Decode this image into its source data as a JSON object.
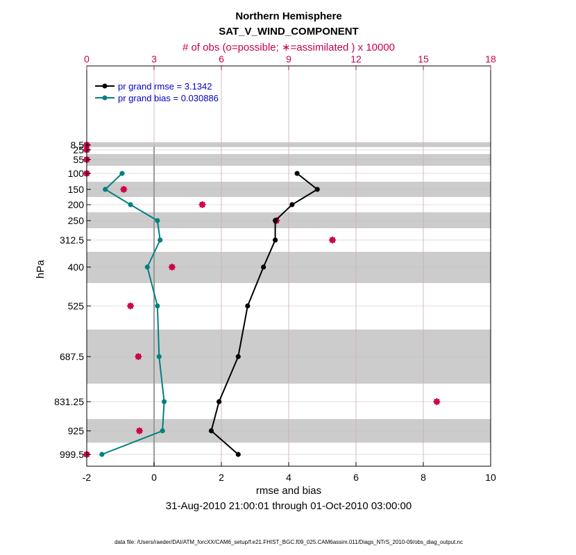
{
  "chart_data": {
    "type": "line",
    "title": "Northern Hemisphere",
    "subtitle": "SAT_V_WIND_COMPONENT",
    "top_axis_label": "# of obs (o=possible; ∗=assimilated ) x 10000",
    "xlabel": "rmse and bias",
    "ylabel": "hPa",
    "date_range": "31-Aug-2010 21:00:01 through 01-Oct-2010 03:00:00",
    "footer": "data file: /Users/raeder/DAI/ATM_forcXX/CAM6_setup/f.e21.FHIST_BGC.f09_025.CAM6assim.011/Diags_NTrS_2010-09/obs_diag_output.nc",
    "xlim": [
      -2,
      10
    ],
    "x_ticks": [
      "-2",
      "0",
      "2",
      "4",
      "6",
      "8",
      "10"
    ],
    "top_xlim": [
      0,
      18
    ],
    "top_ticks": [
      "0",
      "3",
      "6",
      "9",
      "12",
      "15",
      "18"
    ],
    "levels": [
      8.5,
      25,
      55,
      100,
      150,
      200,
      250,
      312.5,
      400,
      525,
      687.5,
      831.25,
      925,
      999.5
    ],
    "level_labels": [
      "8.5",
      "25",
      "55",
      "100",
      "150",
      "200",
      "250",
      "312.5",
      "400",
      "525",
      "687.5",
      "831.25",
      "925",
      "999.5"
    ],
    "series": [
      {
        "name": "rmse",
        "legend": "pr grand rmse = 3.1342",
        "color": "#000000",
        "levels": [
          100,
          150,
          200,
          250,
          312.5,
          400,
          525,
          687.5,
          831.25,
          925,
          999.5
        ],
        "values": [
          4.25,
          4.85,
          4.1,
          3.6,
          3.6,
          3.25,
          2.78,
          2.5,
          1.93,
          1.7,
          2.5
        ]
      },
      {
        "name": "bias",
        "legend": "pr grand bias = 0.030886",
        "color": "#008080",
        "levels": [
          100,
          150,
          200,
          250,
          312.5,
          400,
          525,
          687.5,
          831.25,
          925,
          999.5
        ],
        "values": [
          -0.95,
          -1.45,
          -0.7,
          0.1,
          0.18,
          -0.2,
          0.1,
          0.15,
          0.3,
          0.25,
          -1.55
        ]
      }
    ],
    "obs_possible": {
      "color": "#cc0044",
      "levels": [
        8.5,
        25,
        55,
        100,
        150,
        200,
        250,
        312.5,
        400,
        525,
        687.5,
        831.25,
        925,
        999.5
      ],
      "values": [
        0.0,
        0.0,
        0.0,
        0.0,
        1.65,
        5.15,
        8.45,
        10.95,
        3.8,
        1.95,
        2.3,
        15.6,
        2.35,
        0.0
      ]
    },
    "obs_assimilated": {
      "color": "#cc0044",
      "levels": [
        8.5,
        25,
        55,
        100,
        150,
        200,
        250,
        312.5,
        400,
        525,
        687.5,
        831.25,
        925,
        999.5
      ],
      "values": [
        0.0,
        0.0,
        0.0,
        0.0,
        1.65,
        5.15,
        8.45,
        10.95,
        3.8,
        1.95,
        2.3,
        15.6,
        2.35,
        0.0
      ]
    }
  }
}
